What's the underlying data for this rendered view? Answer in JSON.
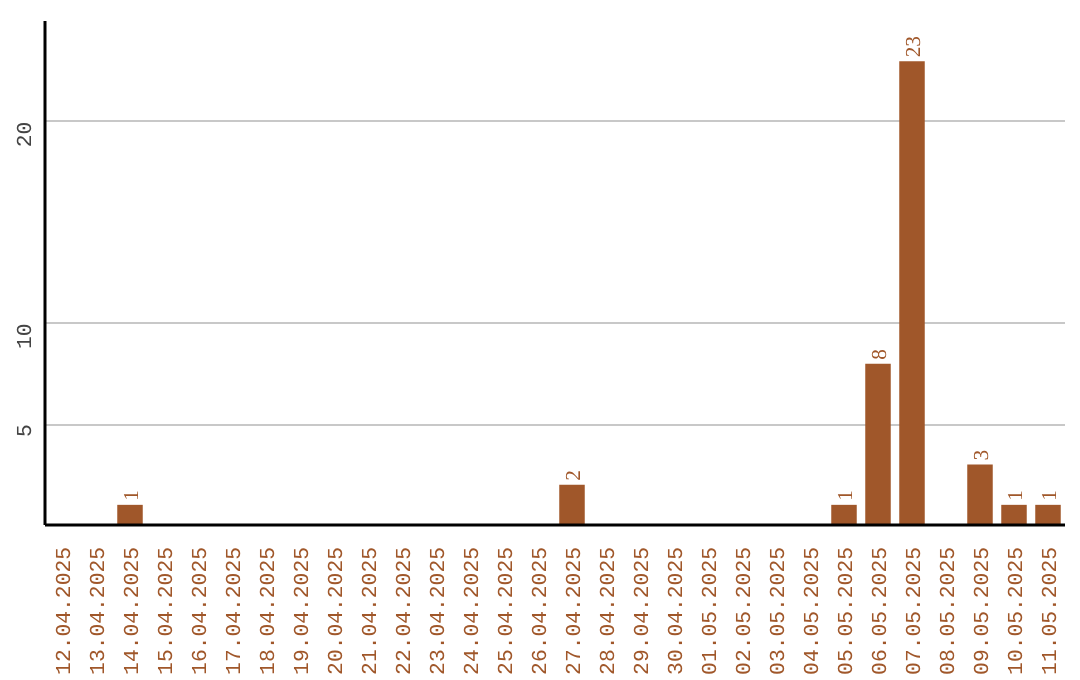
{
  "chart_data": {
    "type": "bar",
    "categories": [
      "12.04.2025",
      "13.04.2025",
      "14.04.2025",
      "15.04.2025",
      "16.04.2025",
      "17.04.2025",
      "18.04.2025",
      "19.04.2025",
      "20.04.2025",
      "21.04.2025",
      "22.04.2025",
      "23.04.2025",
      "24.04.2025",
      "25.04.2025",
      "26.04.2025",
      "27.04.2025",
      "28.04.2025",
      "29.04.2025",
      "30.04.2025",
      "01.05.2025",
      "02.05.2025",
      "03.05.2025",
      "04.05.2025",
      "05.05.2025",
      "06.05.2025",
      "07.05.2025",
      "08.05.2025",
      "09.05.2025",
      "10.05.2025",
      "11.05.2025"
    ],
    "values": [
      0,
      0,
      1,
      0,
      0,
      0,
      0,
      0,
      0,
      0,
      0,
      0,
      0,
      0,
      0,
      2,
      0,
      0,
      0,
      0,
      0,
      0,
      0,
      1,
      8,
      23,
      0,
      3,
      1,
      1
    ],
    "value_labels": [
      null,
      null,
      "1",
      null,
      null,
      null,
      null,
      null,
      null,
      null,
      null,
      null,
      null,
      null,
      null,
      "2",
      null,
      null,
      null,
      null,
      null,
      null,
      null,
      "1",
      "8",
      "23",
      null,
      "3",
      "1",
      "1"
    ],
    "color": "#a0572a",
    "ylim": [
      0,
      25
    ],
    "yticks": [
      5,
      10,
      20
    ],
    "grid": "y"
  }
}
